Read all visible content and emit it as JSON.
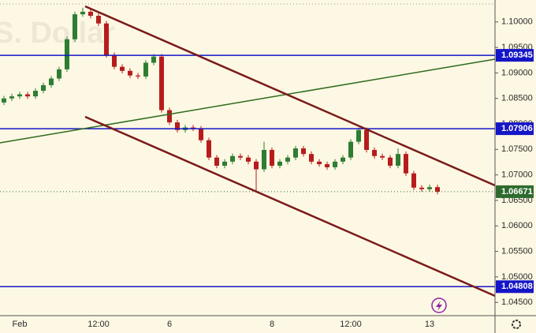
{
  "chart_data": {
    "type": "candlestick",
    "watermark": "S. Dollar",
    "categories": [
      null,
      null,
      "Feb",
      null,
      null,
      null,
      null,
      null,
      null,
      null,
      null,
      null,
      "12:00",
      null,
      null,
      null,
      null,
      null,
      null,
      null,
      null,
      "6",
      null,
      null,
      null,
      null,
      null,
      null,
      null,
      null,
      null,
      null,
      null,
      null,
      "8",
      null,
      null,
      null,
      null,
      null,
      null,
      null,
      null,
      null,
      "12:00",
      null,
      null,
      null,
      null,
      null,
      null,
      null,
      null,
      null,
      "13",
      null
    ],
    "open": [
      1.0842,
      1.085,
      1.0854,
      1.0858,
      1.0854,
      1.0865,
      1.0876,
      1.0889,
      1.0907,
      1.0966,
      1.1015,
      1.102,
      1.1012,
      1.0997,
      1.0935,
      1.0912,
      1.0904,
      1.0895,
      1.0893,
      1.092,
      1.0932,
      1.0827,
      1.0803,
      1.0788,
      1.0793,
      1.0791,
      1.0768,
      1.0734,
      1.0718,
      1.0726,
      1.0737,
      1.0734,
      1.0726,
      1.0711,
      1.0749,
      1.0718,
      1.0726,
      1.0734,
      1.0752,
      1.0741,
      1.0726,
      1.0721,
      1.0715,
      1.0726,
      1.0734,
      1.0765,
      1.0788,
      1.0749,
      1.0737,
      1.0734,
      1.0718,
      1.0741,
      1.0703,
      1.0675,
      1.0672,
      1.0676
    ],
    "high": [
      1.0855,
      1.0859,
      1.0863,
      1.0863,
      1.087,
      1.0881,
      1.0894,
      1.0912,
      1.0971,
      1.102,
      1.1028,
      1.1025,
      1.1017,
      1.1002,
      1.094,
      1.0917,
      1.0909,
      1.09,
      1.0925,
      1.0937,
      1.0937,
      1.0832,
      1.0808,
      1.0798,
      1.0798,
      1.0796,
      1.0773,
      1.0739,
      1.0731,
      1.0742,
      1.0742,
      1.0739,
      1.0731,
      1.0765,
      1.0754,
      1.0731,
      1.0739,
      1.0757,
      1.0757,
      1.0746,
      1.0731,
      1.0726,
      1.0731,
      1.0739,
      1.077,
      1.0793,
      1.0793,
      1.0754,
      1.0742,
      1.0739,
      1.0752,
      1.0746,
      1.0708,
      1.068,
      1.0681,
      1.0681
    ],
    "low": [
      1.0837,
      1.0845,
      1.0849,
      1.0849,
      1.0849,
      1.086,
      1.0871,
      1.0884,
      1.0902,
      1.0961,
      1.101,
      1.1007,
      1.0992,
      1.093,
      1.0907,
      1.0899,
      1.089,
      1.0888,
      1.0888,
      1.0915,
      1.0822,
      1.0798,
      1.0783,
      1.0783,
      1.0786,
      1.0763,
      1.0729,
      1.0713,
      1.0713,
      1.0721,
      1.0729,
      1.0721,
      1.0668,
      1.0706,
      1.0713,
      1.0713,
      1.0721,
      1.0729,
      1.0736,
      1.0721,
      1.0716,
      1.071,
      1.071,
      1.0721,
      1.0729,
      1.076,
      1.0744,
      1.0732,
      1.0729,
      1.0713,
      1.0713,
      1.0698,
      1.067,
      1.0667,
      1.0667,
      1.0662
    ],
    "close": [
      1.085,
      1.0854,
      1.0858,
      1.0854,
      1.0865,
      1.0876,
      1.0889,
      1.0907,
      1.0966,
      1.1015,
      1.102,
      1.1012,
      1.0997,
      1.0935,
      1.0912,
      1.0904,
      1.0895,
      1.0893,
      1.092,
      1.0932,
      1.0827,
      1.0803,
      1.0788,
      1.0793,
      1.0791,
      1.0768,
      1.0734,
      1.0718,
      1.0726,
      1.0737,
      1.0734,
      1.0726,
      1.0711,
      1.0749,
      1.0718,
      1.0726,
      1.0734,
      1.0752,
      1.0741,
      1.0726,
      1.0721,
      1.0715,
      1.0726,
      1.0734,
      1.0765,
      1.0788,
      1.0749,
      1.0737,
      1.0734,
      1.0718,
      1.0741,
      1.0703,
      1.0675,
      1.0672,
      1.0676,
      1.0667
    ],
    "up_color": "#2e7d32",
    "down_color": "#b71c1c",
    "ylim": [
      1.0424,
      1.1043
    ],
    "yticks": [
      {
        "value": 1.1,
        "label": "1.10000"
      },
      {
        "value": 1.095,
        "label": "1.09500"
      },
      {
        "value": 1.09,
        "label": "1.09000"
      },
      {
        "value": 1.085,
        "label": "1.08500"
      },
      {
        "value": 1.08,
        "label": "1.08000"
      },
      {
        "value": 1.075,
        "label": "1.07500"
      },
      {
        "value": 1.07,
        "label": "1.07000"
      },
      {
        "value": 1.065,
        "label": "1.06500"
      },
      {
        "value": 1.06,
        "label": "1.06000"
      },
      {
        "value": 1.055,
        "label": "1.05500"
      },
      {
        "value": 1.05,
        "label": "1.05000"
      },
      {
        "value": 1.045,
        "label": "1.04500"
      }
    ],
    "levels": [
      1.09345,
      1.07906,
      1.04808
    ],
    "level_color": "#1515c8",
    "last_price": 1.06671,
    "last_price_color": "#2e6b2e"
  }
}
